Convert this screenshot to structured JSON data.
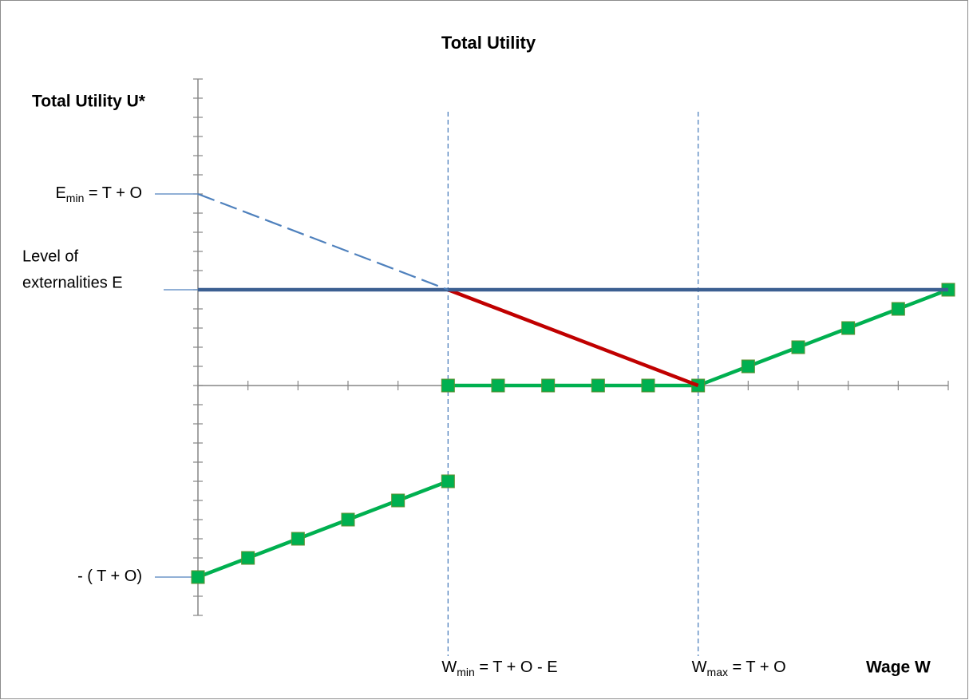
{
  "chart_data": {
    "type": "line",
    "title": "Total Utility",
    "y_label": "Total Utility U*",
    "x_label": "Wage W",
    "xlim": [
      0,
      15
    ],
    "ylim": [
      -12,
      16
    ],
    "xticks": [
      0,
      1,
      2,
      3,
      4,
      5,
      6,
      7,
      8,
      9,
      10,
      11,
      12,
      13,
      14,
      15
    ],
    "yticks": [
      -12,
      -11,
      -10,
      -9,
      -8,
      -7,
      -6,
      -5,
      -4,
      -3,
      -2,
      -1,
      0,
      1,
      2,
      3,
      4,
      5,
      6,
      7,
      8,
      9,
      10,
      11,
      12,
      13,
      14,
      15,
      16
    ],
    "series": [
      {
        "color": "#00b050",
        "markers": true,
        "dashed": false,
        "x": [
          0,
          1,
          2,
          3,
          4,
          5
        ],
        "values": [
          -10,
          -9,
          -8,
          -7,
          -6,
          -5
        ]
      },
      {
        "color": "#00b050",
        "markers": true,
        "dashed": false,
        "x": [
          5,
          6,
          7,
          8,
          9,
          10,
          11,
          12,
          13,
          14,
          15
        ],
        "values": [
          0,
          0,
          0,
          0,
          0,
          0,
          1,
          2,
          3,
          4,
          5
        ]
      },
      {
        "color": "#c00000",
        "markers": false,
        "dashed": false,
        "x": [
          5,
          10
        ],
        "values": [
          5,
          0
        ]
      },
      {
        "color": "#3c5f91",
        "markers": false,
        "dashed": false,
        "x": [
          0,
          15
        ],
        "values": [
          5,
          5
        ]
      },
      {
        "color": "#4f81bd",
        "markers": false,
        "dashed": true,
        "x": [
          0,
          5
        ],
        "values": [
          10,
          5
        ]
      }
    ],
    "y_levels": [
      {
        "value": 10,
        "label": {
          "main": "E",
          "sub": "min",
          "rest": " = T + O"
        }
      },
      {
        "value": 5,
        "lines": [
          "Level of",
          "externalities E"
        ]
      },
      {
        "value": -10,
        "label": {
          "main": "- ( T + O)"
        }
      }
    ],
    "x_markers": [
      {
        "value": 5,
        "label": {
          "main": "W",
          "sub": "min",
          "rest": " = T + O - E"
        }
      },
      {
        "value": 10,
        "label": {
          "main": "W",
          "sub": "max",
          "rest": " = T + O"
        }
      }
    ]
  }
}
